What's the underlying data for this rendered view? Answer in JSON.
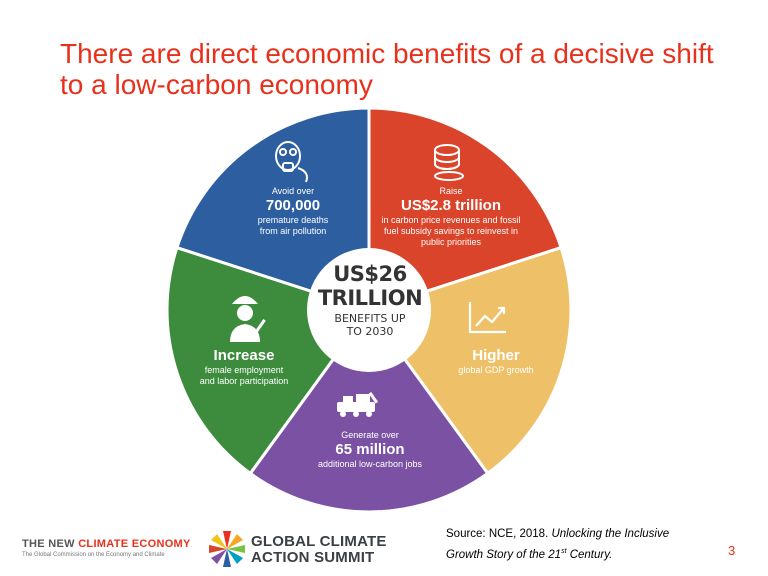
{
  "title": "There are direct economic benefits of a decisive shift to a low-carbon economy",
  "center": {
    "amount_line1": "US$26",
    "amount_line2": "TRILLION",
    "label_line1": "BENEFITS UP",
    "label_line2": "TO 2030"
  },
  "segments": [
    {
      "id": "raise",
      "color": "#d9442a",
      "icon": "coins-icon",
      "lines": [
        "Raise",
        "US$2.8 trillion",
        "in carbon price revenues and fossil",
        "fuel subsidy savings to reinvest in",
        "public priorities"
      ]
    },
    {
      "id": "higher",
      "color": "#eec169",
      "icon": "rising-chart-icon",
      "lines": [
        "Higher",
        "global GDP growth"
      ]
    },
    {
      "id": "generate",
      "color": "#7b52a3",
      "icon": "train-icon",
      "lines": [
        "Generate over",
        "65 million",
        "additional low-carbon jobs"
      ]
    },
    {
      "id": "increase",
      "color": "#3d8b3d",
      "icon": "female-worker-icon",
      "lines": [
        "Increase",
        "female employment",
        "and labor participation"
      ]
    },
    {
      "id": "avoid",
      "color": "#2d5fa0",
      "icon": "gas-mask-icon",
      "lines": [
        "Avoid over",
        "700,000",
        "premature deaths",
        "from air pollution"
      ]
    }
  ],
  "footer": {
    "nce_part1": "THE NEW ",
    "nce_part2": "CLIMATE ECONOMY",
    "nce_tagline": "The Global Commission on the Economy and Climate",
    "gcas_line1": "GLOBAL CLIMATE",
    "gcas_line2": "ACTION SUMMIT",
    "source_prefix": "Source: NCE, 2018. ",
    "source_italic_1": "Unlocking the Inclusive",
    "source_italic_2": "Growth Story of the 21",
    "source_sup": "st",
    "source_italic_3": " Century.",
    "page_number": "3"
  },
  "colors": {
    "title": "#e8311c",
    "nce_red": "#e8311c",
    "nce_gray": "#555555"
  }
}
